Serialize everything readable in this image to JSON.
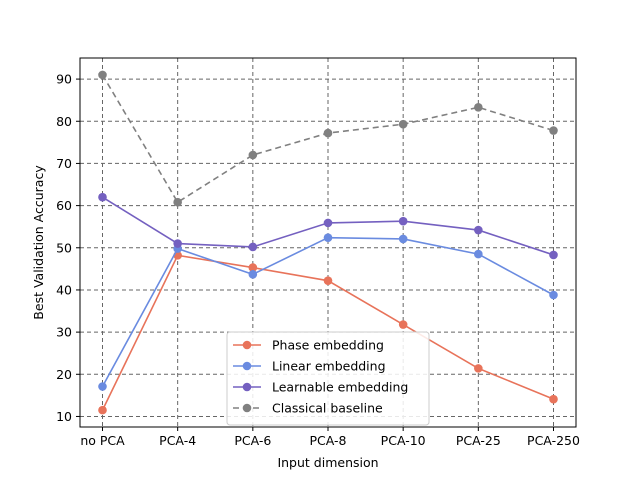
{
  "chart_data": {
    "type": "line",
    "title": "",
    "xlabel": "Input dimension",
    "ylabel": "Best Validation Accuracy",
    "categories": [
      "no PCA",
      "PCA-4",
      "PCA-6",
      "PCA-8",
      "PCA-10",
      "PCA-25",
      "PCA-250"
    ],
    "ylim": [
      7.5,
      95
    ],
    "yticks": [
      10,
      20,
      30,
      40,
      50,
      60,
      70,
      80,
      90
    ],
    "grid": true,
    "legend_position": "lower-center",
    "series": [
      {
        "name": "Phase embedding",
        "color": "#e8735a",
        "style": "solid",
        "values": [
          11.5,
          48.2,
          45.3,
          42.2,
          31.8,
          21.4,
          14.1
        ]
      },
      {
        "name": "Linear embedding",
        "color": "#6a8be0",
        "style": "solid",
        "values": [
          17.1,
          49.8,
          43.7,
          52.4,
          52.1,
          48.5,
          38.8
        ]
      },
      {
        "name": "Learnable embedding",
        "color": "#7460c0",
        "style": "solid",
        "values": [
          62.0,
          51.0,
          50.2,
          55.9,
          56.3,
          54.2,
          48.3
        ]
      },
      {
        "name": "Classical baseline",
        "color": "#808080",
        "style": "dashed",
        "values": [
          91.0,
          60.8,
          72.0,
          77.2,
          79.3,
          83.3,
          77.8
        ]
      }
    ]
  }
}
